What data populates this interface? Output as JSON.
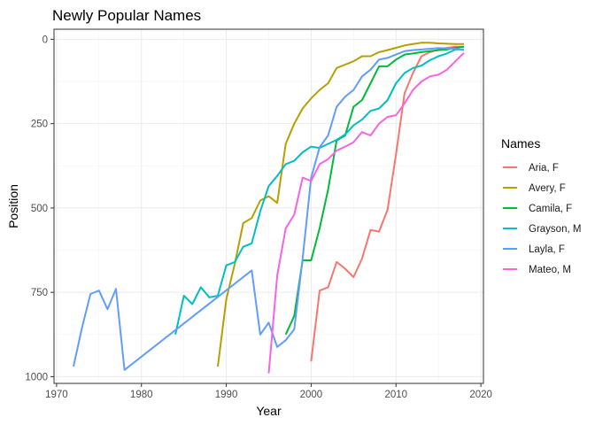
{
  "chart_data": {
    "type": "line",
    "title": "Newly Popular Names",
    "xlabel": "Year",
    "ylabel": "Position",
    "xlim": [
      1969.7,
      2020.3
    ],
    "ylim": [
      1020,
      -30
    ],
    "y_reversed": true,
    "x_ticks": [
      1970,
      1980,
      1990,
      2000,
      2010,
      2020
    ],
    "y_ticks": [
      0,
      250,
      500,
      750,
      1000
    ],
    "grid": true,
    "legend": {
      "title": "Names",
      "position": "right"
    },
    "series": [
      {
        "name": "Aria, F",
        "color": "#F8766D",
        "points": [
          [
            2000,
            955
          ],
          [
            2001,
            745
          ],
          [
            2002,
            735
          ],
          [
            2003,
            660
          ],
          [
            2004,
            680
          ],
          [
            2005,
            705
          ],
          [
            2006,
            650
          ],
          [
            2007,
            565
          ],
          [
            2008,
            570
          ],
          [
            2009,
            505
          ],
          [
            2010,
            340
          ],
          [
            2011,
            160
          ],
          [
            2012,
            100
          ],
          [
            2013,
            50
          ],
          [
            2014,
            38
          ],
          [
            2015,
            30
          ],
          [
            2016,
            25
          ],
          [
            2017,
            22
          ],
          [
            2018,
            22
          ]
        ]
      },
      {
        "name": "Avery, F",
        "color": "#B79F00",
        "points": [
          [
            1989,
            970
          ],
          [
            1990,
            770
          ],
          [
            1991,
            665
          ],
          [
            1992,
            545
          ],
          [
            1993,
            530
          ],
          [
            1994,
            478
          ],
          [
            1995,
            465
          ],
          [
            1996,
            485
          ],
          [
            1997,
            310
          ],
          [
            1998,
            250
          ],
          [
            1999,
            205
          ],
          [
            2000,
            175
          ],
          [
            2001,
            150
          ],
          [
            2002,
            130
          ],
          [
            2003,
            85
          ],
          [
            2004,
            75
          ],
          [
            2005,
            65
          ],
          [
            2006,
            50
          ],
          [
            2007,
            50
          ],
          [
            2008,
            38
          ],
          [
            2009,
            32
          ],
          [
            2010,
            25
          ],
          [
            2011,
            18
          ],
          [
            2012,
            14
          ],
          [
            2013,
            10
          ],
          [
            2014,
            10
          ],
          [
            2015,
            12
          ],
          [
            2016,
            13
          ],
          [
            2017,
            14
          ],
          [
            2018,
            14
          ]
        ]
      },
      {
        "name": "Camila, F",
        "color": "#00BA38",
        "points": [
          [
            1997,
            875
          ],
          [
            1998,
            820
          ],
          [
            1999,
            655
          ],
          [
            2000,
            655
          ],
          [
            2001,
            560
          ],
          [
            2002,
            445
          ],
          [
            2003,
            300
          ],
          [
            2004,
            285
          ],
          [
            2005,
            200
          ],
          [
            2006,
            180
          ],
          [
            2007,
            130
          ],
          [
            2008,
            80
          ],
          [
            2009,
            80
          ],
          [
            2010,
            60
          ],
          [
            2011,
            45
          ],
          [
            2012,
            42
          ],
          [
            2013,
            38
          ],
          [
            2014,
            35
          ],
          [
            2015,
            32
          ],
          [
            2016,
            30
          ],
          [
            2017,
            25
          ],
          [
            2018,
            22
          ]
        ]
      },
      {
        "name": "Grayson, M",
        "color": "#00BFC4",
        "points": [
          [
            1984,
            875
          ],
          [
            1985,
            760
          ],
          [
            1986,
            785
          ],
          [
            1987,
            735
          ],
          [
            1988,
            765
          ],
          [
            1989,
            760
          ],
          [
            1990,
            670
          ],
          [
            1991,
            660
          ],
          [
            1992,
            615
          ],
          [
            1993,
            605
          ],
          [
            1994,
            510
          ],
          [
            1995,
            435
          ],
          [
            1996,
            405
          ],
          [
            1997,
            370
          ],
          [
            1998,
            360
          ],
          [
            1999,
            335
          ],
          [
            2000,
            318
          ],
          [
            2001,
            322
          ],
          [
            2002,
            310
          ],
          [
            2003,
            298
          ],
          [
            2004,
            282
          ],
          [
            2005,
            255
          ],
          [
            2006,
            238
          ],
          [
            2007,
            212
          ],
          [
            2008,
            205
          ],
          [
            2009,
            180
          ],
          [
            2010,
            130
          ],
          [
            2011,
            100
          ],
          [
            2012,
            85
          ],
          [
            2013,
            78
          ],
          [
            2014,
            62
          ],
          [
            2015,
            50
          ],
          [
            2016,
            42
          ],
          [
            2017,
            30
          ],
          [
            2018,
            30
          ]
        ]
      },
      {
        "name": "Layla, F",
        "color": "#619CFF",
        "points": [
          [
            1972,
            970
          ],
          [
            1973,
            855
          ],
          [
            1974,
            755
          ],
          [
            1975,
            745
          ],
          [
            1976,
            800
          ],
          [
            1977,
            740
          ],
          [
            1978,
            980
          ],
          [
            1993,
            685
          ],
          [
            1994,
            875
          ],
          [
            1995,
            840
          ],
          [
            1996,
            912
          ],
          [
            1997,
            892
          ],
          [
            1998,
            860
          ],
          [
            1999,
            650
          ],
          [
            2000,
            410
          ],
          [
            2001,
            320
          ],
          [
            2002,
            285
          ],
          [
            2003,
            200
          ],
          [
            2004,
            170
          ],
          [
            2005,
            150
          ],
          [
            2006,
            110
          ],
          [
            2007,
            90
          ],
          [
            2008,
            60
          ],
          [
            2009,
            55
          ],
          [
            2010,
            45
          ],
          [
            2011,
            35
          ],
          [
            2012,
            32
          ],
          [
            2013,
            30
          ],
          [
            2014,
            28
          ],
          [
            2015,
            26
          ],
          [
            2016,
            27
          ],
          [
            2017,
            28
          ],
          [
            2018,
            32
          ]
        ]
      },
      {
        "name": "Mateo, M",
        "color": "#F564E3",
        "points": [
          [
            1995,
            990
          ],
          [
            1996,
            700
          ],
          [
            1997,
            560
          ],
          [
            1998,
            520
          ],
          [
            1999,
            410
          ],
          [
            2000,
            420
          ],
          [
            2001,
            370
          ],
          [
            2002,
            355
          ],
          [
            2003,
            330
          ],
          [
            2004,
            318
          ],
          [
            2005,
            305
          ],
          [
            2006,
            275
          ],
          [
            2007,
            285
          ],
          [
            2008,
            250
          ],
          [
            2009,
            230
          ],
          [
            2010,
            225
          ],
          [
            2011,
            190
          ],
          [
            2012,
            150
          ],
          [
            2013,
            125
          ],
          [
            2014,
            110
          ],
          [
            2015,
            105
          ],
          [
            2016,
            90
          ],
          [
            2017,
            65
          ],
          [
            2018,
            40
          ]
        ]
      }
    ]
  }
}
